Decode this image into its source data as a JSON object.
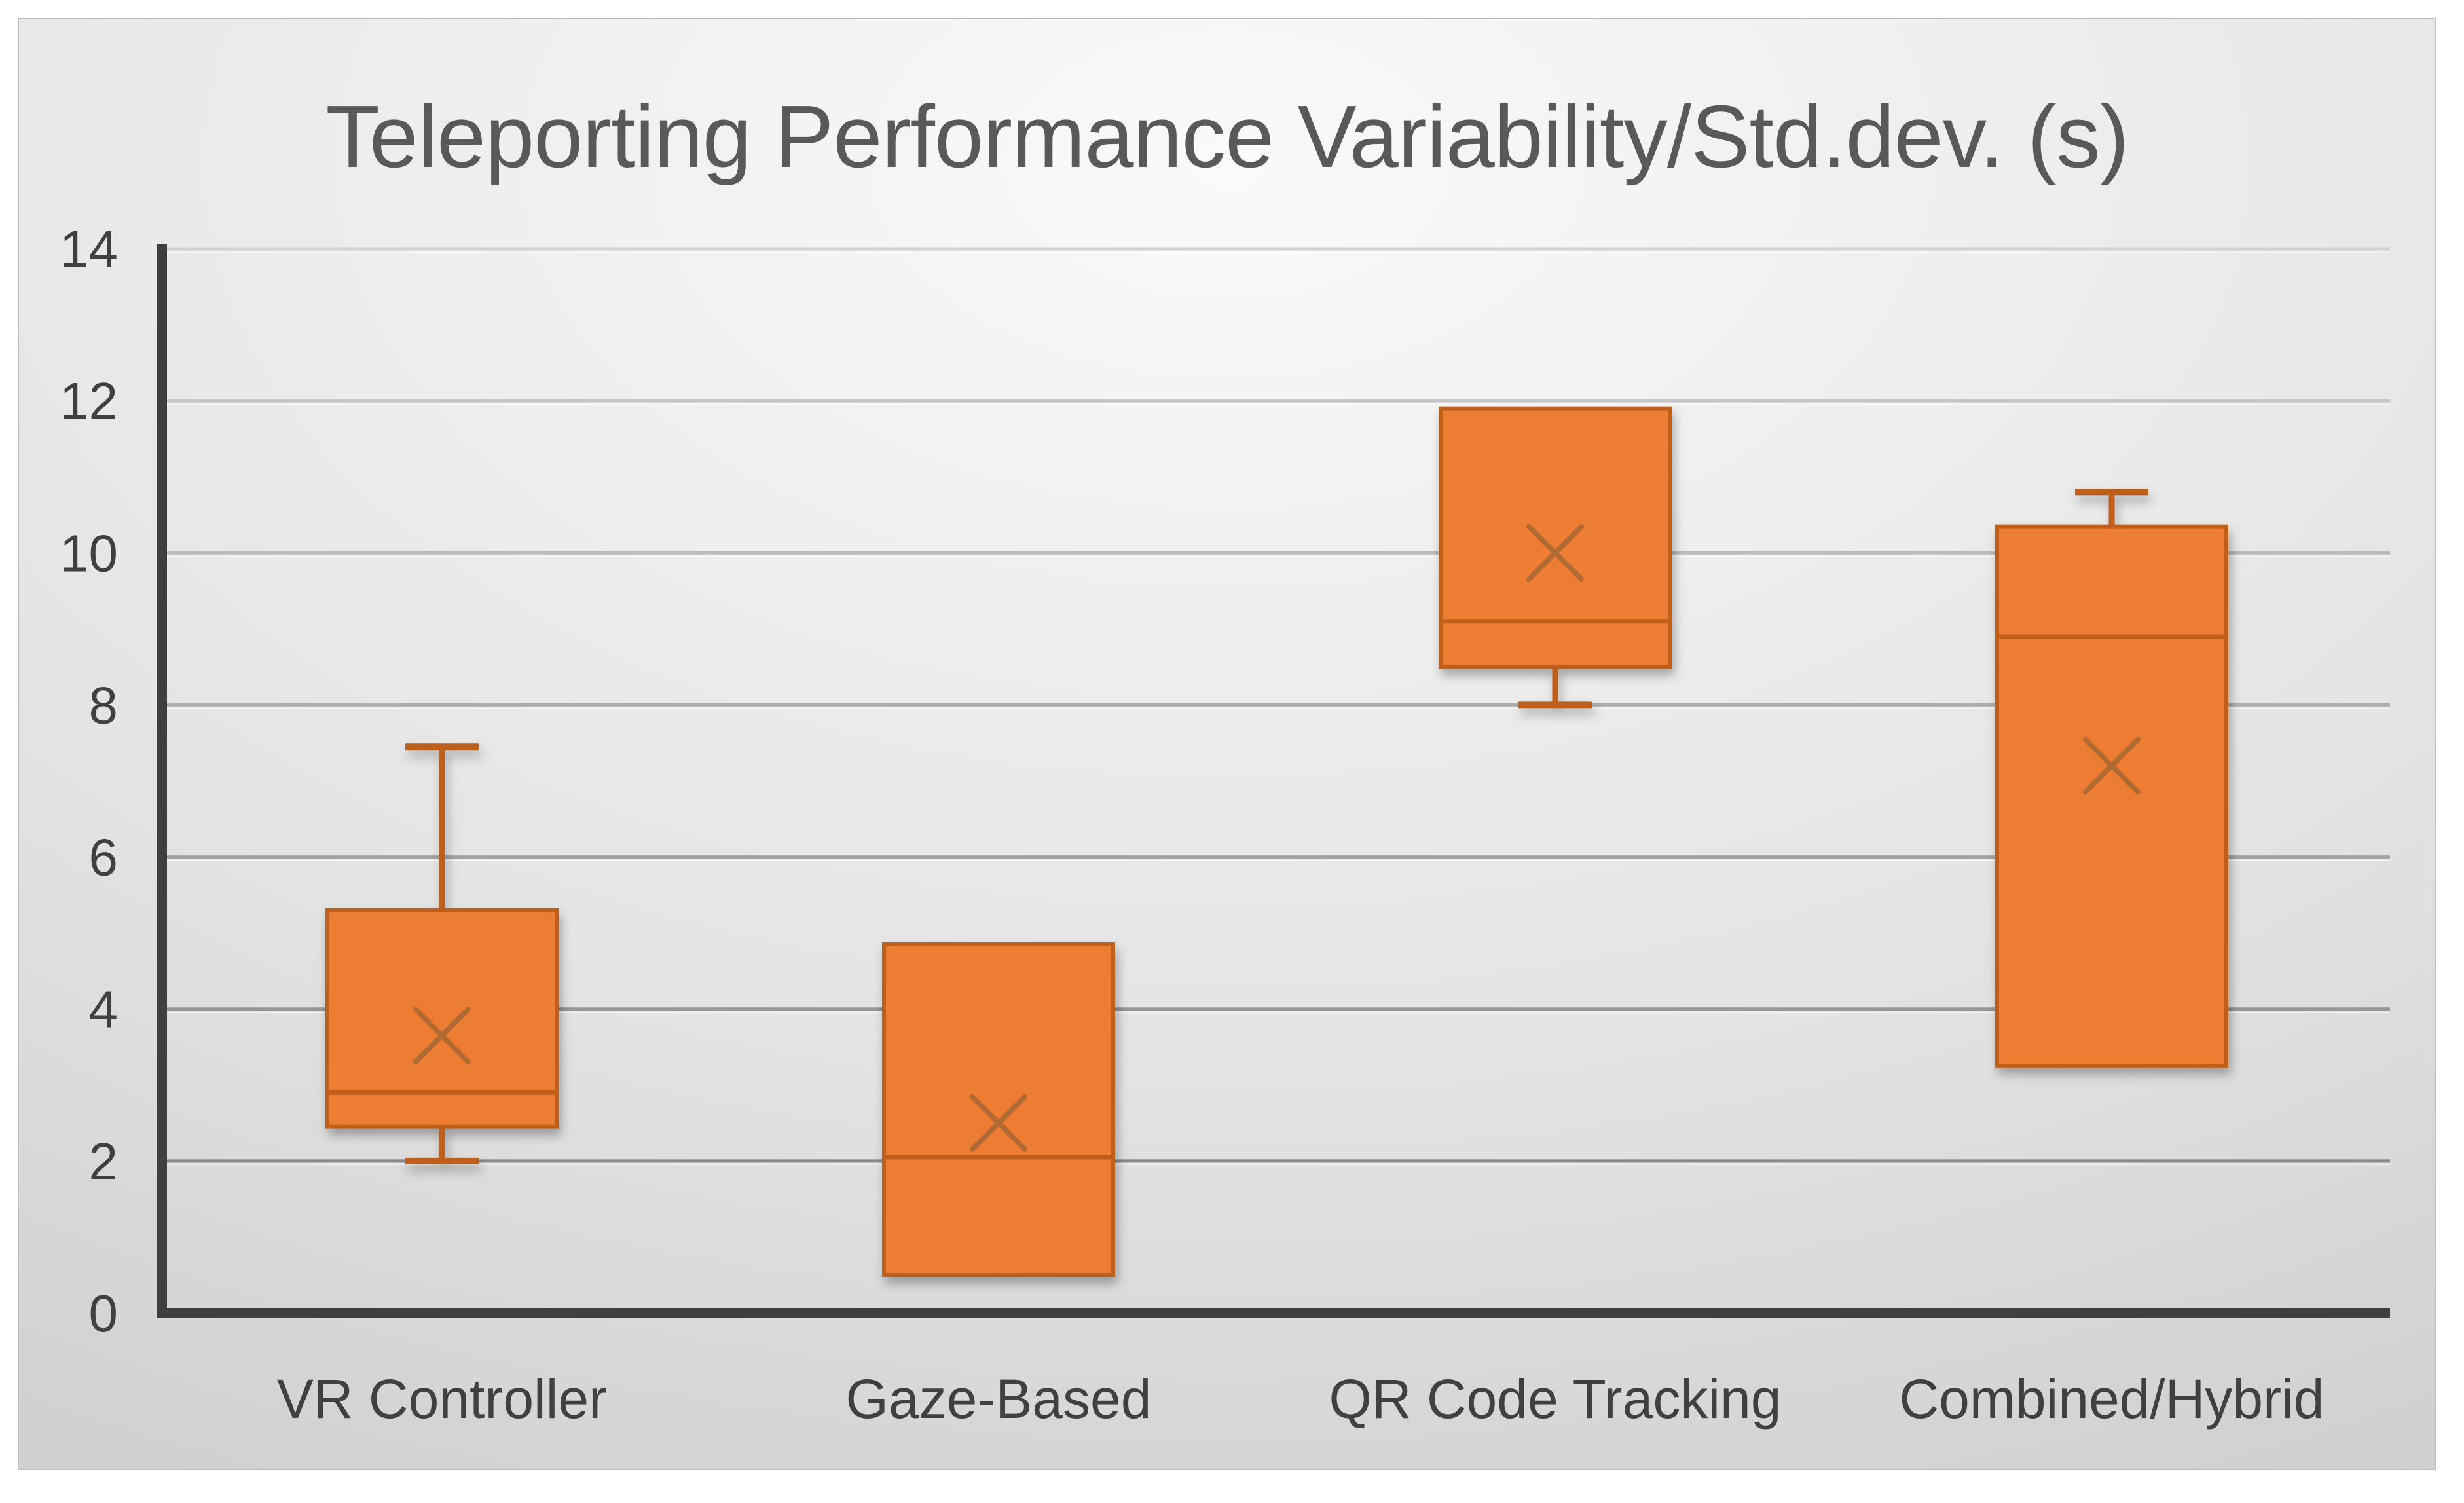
{
  "chart_data": {
    "type": "boxplot",
    "title": "Teleporting Performance Variability/Std.dev. (s)",
    "xlabel": "",
    "ylabel": "",
    "ylim": [
      0,
      14
    ],
    "yticks": [
      0,
      2,
      4,
      6,
      8,
      10,
      12,
      14
    ],
    "grid": true,
    "legend": "none",
    "categories": [
      "VR Controller",
      "Gaze-Based",
      "QR Code Tracking",
      "Combined/Hybrid"
    ],
    "series": [
      {
        "name": "VR Controller",
        "min": 2.0,
        "q1": 2.45,
        "median": 2.9,
        "q3": 5.3,
        "max": 7.45,
        "mean": 3.65
      },
      {
        "name": "Gaze-Based",
        "min": 0.5,
        "q1": 0.5,
        "median": 2.05,
        "q3": 4.85,
        "max": 4.85,
        "mean": 2.5
      },
      {
        "name": "QR Code Tracking",
        "min": 8.0,
        "q1": 8.5,
        "median": 9.1,
        "q3": 11.9,
        "max": 11.9,
        "mean": 10.0
      },
      {
        "name": "Combined/Hybrid",
        "min": 3.25,
        "q1": 3.25,
        "median": 8.9,
        "q3": 10.35,
        "max": 10.8,
        "mean": 7.2
      }
    ],
    "colors": {
      "box_fill": "#ED7D31",
      "box_border": "#BE5E1A",
      "median_line": "#BE5E1A",
      "mean_marker": "#A76530",
      "axis": "#3F3F3F",
      "gridline_dark": "#8A8A8A",
      "gridline_light": "#D2D2D2",
      "title_text": "#595959",
      "tick_text": "#404040",
      "panel_border": "#BDBDBD",
      "background_center": "#FAFAFA",
      "background_mid": "#E3E3E3",
      "background_edge": "#C9C9C9"
    }
  }
}
